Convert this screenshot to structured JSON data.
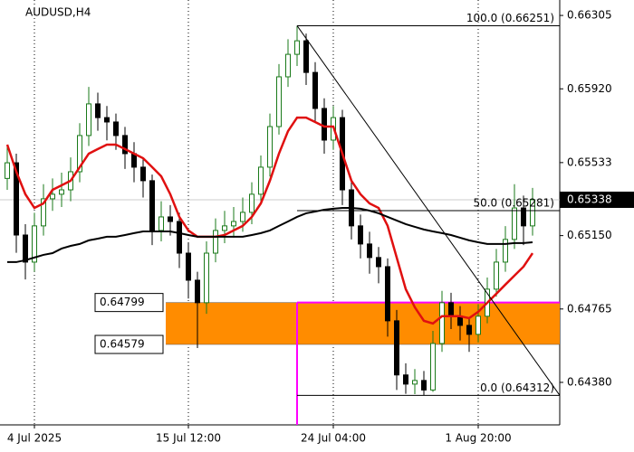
{
  "chart_data": {
    "type": "candlestick",
    "title": "AUDUSD,H4",
    "bull_color": "#1a7a1a",
    "bear_color": "#000000",
    "open": [
      0.6545,
      0.65532,
      0.65153,
      0.65011,
      0.65201,
      0.65343,
      0.65367,
      0.6539,
      0.65485,
      0.65675,
      0.65841,
      0.65769,
      0.65746,
      0.65675,
      0.6558,
      0.65509,
      0.65438,
      0.65177,
      0.65248,
      0.65224,
      0.65058,
      0.64916,
      0.64798,
      0.65058,
      0.65177,
      0.65201,
      0.65224,
      0.65272,
      0.65367,
      0.65509,
      0.65722,
      0.65983,
      0.66101,
      0.66172,
      0.66006,
      0.65817,
      0.65651,
      0.65769,
      0.6539,
      0.65201,
      0.65106,
      0.65035,
      0.64987,
      0.64703,
      0.64419,
      0.64371,
      0.6439,
      0.6434,
      0.64584,
      0.64798,
      0.64727,
      0.64679,
      0.64632,
      0.64727,
      0.64869,
      0.65011,
      0.6513,
      0.65295,
      0.65201
    ],
    "high": [
      0.6562,
      0.6558,
      0.6521,
      0.6527,
      0.6542,
      0.6545,
      0.6548,
      0.6556,
      0.6574,
      0.6593,
      0.659,
      0.6583,
      0.6579,
      0.6572,
      0.6564,
      0.6556,
      0.6547,
      0.6533,
      0.6531,
      0.6527,
      0.6511,
      0.6496,
      0.6512,
      0.6524,
      0.6528,
      0.653,
      0.6535,
      0.6543,
      0.6557,
      0.6579,
      0.6605,
      0.6618,
      0.66251,
      0.6621,
      0.6606,
      0.6587,
      0.6583,
      0.6581,
      0.6544,
      0.6526,
      0.6517,
      0.6509,
      0.6503,
      0.6476,
      0.6448,
      0.6445,
      0.6444,
      0.6465,
      0.6486,
      0.6485,
      0.6478,
      0.6472,
      0.6479,
      0.6493,
      0.6508,
      0.652,
      0.6542,
      0.6536,
      0.654
    ],
    "low": [
      0.6539,
      0.6506,
      0.6492,
      0.6496,
      0.6515,
      0.6528,
      0.653,
      0.6533,
      0.6543,
      0.6562,
      0.657,
      0.6565,
      0.656,
      0.655,
      0.6543,
      0.6535,
      0.651,
      0.6512,
      0.6515,
      0.6498,
      0.6482,
      0.6456,
      0.6474,
      0.6501,
      0.6511,
      0.6514,
      0.6517,
      0.6521,
      0.6532,
      0.6546,
      0.6568,
      0.6593,
      0.6604,
      0.6594,
      0.6575,
      0.6558,
      0.656,
      0.6531,
      0.6513,
      0.6503,
      0.6495,
      0.649,
      0.6462,
      0.6434,
      0.6432,
      0.64318,
      0.64312,
      0.6433,
      0.6454,
      0.6466,
      0.646,
      0.6454,
      0.6459,
      0.6469,
      0.6483,
      0.6496,
      0.6508,
      0.651,
      0.6515
    ],
    "close": [
      0.65532,
      0.65153,
      0.65011,
      0.65201,
      0.65343,
      0.65367,
      0.6539,
      0.65485,
      0.65675,
      0.65841,
      0.65769,
      0.65746,
      0.65675,
      0.6558,
      0.65509,
      0.65438,
      0.65177,
      0.65248,
      0.65224,
      0.65058,
      0.64916,
      0.64798,
      0.65058,
      0.65177,
      0.65201,
      0.65224,
      0.65272,
      0.65367,
      0.65509,
      0.65722,
      0.65983,
      0.66101,
      0.66172,
      0.66006,
      0.65817,
      0.65651,
      0.65769,
      0.6539,
      0.65201,
      0.65106,
      0.65035,
      0.64987,
      0.64703,
      0.64419,
      0.64371,
      0.6439,
      0.6434,
      0.64584,
      0.64798,
      0.64727,
      0.64679,
      0.64632,
      0.64727,
      0.64869,
      0.65011,
      0.6513,
      0.65295,
      0.65201,
      0.65338
    ],
    "ma_lines": [
      {
        "color": "#e01010",
        "values": [
          0.65627,
          0.65485,
          0.65367,
          0.65295,
          0.65319,
          0.6539,
          0.65414,
          0.65438,
          0.65509,
          0.6558,
          0.65604,
          0.65627,
          0.65627,
          0.65604,
          0.6558,
          0.65556,
          0.65509,
          0.65461,
          0.65367,
          0.65248,
          0.65177,
          0.65144,
          0.65144,
          0.65144,
          0.65153,
          0.65177,
          0.65201,
          0.65248,
          0.65319,
          0.65438,
          0.6558,
          0.65698,
          0.65769,
          0.65769,
          0.65746,
          0.65722,
          0.65722,
          0.6558,
          0.65438,
          0.65367,
          0.65319,
          0.65295,
          0.65201,
          0.65035,
          0.64869,
          0.64774,
          0.64703,
          0.64689,
          0.64727,
          0.64727,
          0.64727,
          0.64717,
          0.6475,
          0.64798,
          0.64845,
          0.64893,
          0.6494,
          0.64987,
          0.65058
        ]
      },
      {
        "color": "#000000",
        "values": [
          0.65011,
          0.65011,
          0.65021,
          0.65035,
          0.65049,
          0.65058,
          0.65082,
          0.65096,
          0.65106,
          0.65125,
          0.65134,
          0.65144,
          0.65144,
          0.65153,
          0.65163,
          0.65172,
          0.65172,
          0.65172,
          0.65172,
          0.65163,
          0.65153,
          0.65144,
          0.65144,
          0.65144,
          0.65144,
          0.65144,
          0.65144,
          0.65153,
          0.65163,
          0.65177,
          0.65201,
          0.65224,
          0.65248,
          0.65267,
          0.65276,
          0.65286,
          0.65291,
          0.65295,
          0.65295,
          0.65291,
          0.65281,
          0.65267,
          0.65248,
          0.65229,
          0.6521,
          0.65196,
          0.65182,
          0.65172,
          0.65163,
          0.65153,
          0.65139,
          0.65125,
          0.65115,
          0.65106,
          0.65106,
          0.65106,
          0.65111,
          0.65111,
          0.65115
        ]
      }
    ],
    "fibonacci": {
      "color": "#000000",
      "levels": [
        {
          "value": 0.66251,
          "label": "100.0 (0.66251)"
        },
        {
          "value": 0.65281,
          "label": "50.0 (0.65281)"
        },
        {
          "value": 0.64312,
          "label": "0.0 (0.64312)"
        }
      ]
    },
    "zone": {
      "color": "#ff8c00",
      "line_color": "#ff00ff",
      "top": {
        "value": 0.64799,
        "label": "0.64799"
      },
      "bottom": {
        "value": 0.64579,
        "label": "0.64579"
      }
    },
    "last_price": {
      "value": 0.65338,
      "label": "0.65338"
    },
    "xlim": [
      -0.8,
      61
    ],
    "xticks": [
      {
        "value": 3,
        "label": "4 Jul 2025"
      },
      {
        "value": 20,
        "label": "15 Jul 12:00"
      },
      {
        "value": 36,
        "label": "24 Jul 04:00"
      },
      {
        "value": 52,
        "label": "1 Aug 20:00"
      }
    ],
    "ylim": [
      0.64157,
      0.66386
    ],
    "yticks": [
      0.66305,
      {
        "value": 0.6592,
        "label": "0.65920"
      },
      0.65533,
      {
        "value": 0.6515,
        "label": "0.65150"
      },
      0.64765,
      {
        "value": 0.6438,
        "label": "0.64380"
      }
    ]
  }
}
